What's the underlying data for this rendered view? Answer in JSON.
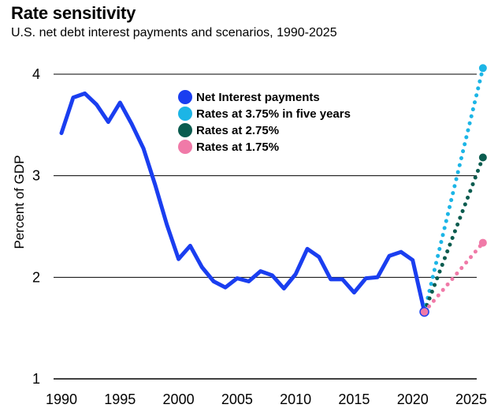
{
  "title": "Rate sensitivity",
  "subtitle": "U.S. net debt interest payments and scenarios, 1990-2025",
  "chart_data": {
    "type": "line",
    "title": "Rate sensitivity",
    "subtitle": "U.S. net debt interest payments and scenarios, 1990-2025",
    "xlabel": "",
    "ylabel": "Percent of GDP",
    "xlim": [
      1989.5,
      2026
    ],
    "ylim": [
      1,
      4.2
    ],
    "x_ticks": [
      "1990",
      "1995",
      "2000",
      "2005",
      "2010",
      "2015",
      "2020",
      "2025"
    ],
    "y_ticks": [
      "1",
      "2",
      "3",
      "4"
    ],
    "grid": "horizontal",
    "legend_placement": "top-center",
    "series": [
      {
        "name": "Net Interest payments",
        "style": "solid",
        "color": "#1a3ef0",
        "x": [
          1990,
          1991,
          1992,
          1993,
          1994,
          1995,
          1996,
          1997,
          1998,
          1999,
          2000,
          2001,
          2002,
          2003,
          2004,
          2005,
          2006,
          2007,
          2008,
          2009,
          2010,
          2011,
          2012,
          2013,
          2014,
          2015,
          2016,
          2017,
          2018,
          2019,
          2020,
          2021
        ],
        "y": [
          3.42,
          3.77,
          3.81,
          3.7,
          3.53,
          3.72,
          3.51,
          3.27,
          2.91,
          2.52,
          2.18,
          2.31,
          2.1,
          1.96,
          1.9,
          1.99,
          1.96,
          2.06,
          2.02,
          1.89,
          2.03,
          2.28,
          2.2,
          1.98,
          1.98,
          1.85,
          1.99,
          2.0,
          2.21,
          2.25,
          2.17,
          1.66
        ]
      },
      {
        "name": "Rates at 3.75% in five years",
        "style": "dotted",
        "color": "#1cb5e6",
        "x": [
          2021,
          2026
        ],
        "y": [
          1.66,
          4.06
        ]
      },
      {
        "name": "Rates at 2.75%",
        "style": "dotted",
        "color": "#0b5c4f",
        "x": [
          2021,
          2026
        ],
        "y": [
          1.66,
          3.18
        ]
      },
      {
        "name": "Rates at 1.75%",
        "style": "dotted",
        "color": "#f07aa8",
        "x": [
          2021,
          2026
        ],
        "y": [
          1.66,
          2.34
        ]
      }
    ],
    "highlight_point": {
      "x": 2021,
      "y": 1.66,
      "color": "#f07aa8"
    }
  }
}
